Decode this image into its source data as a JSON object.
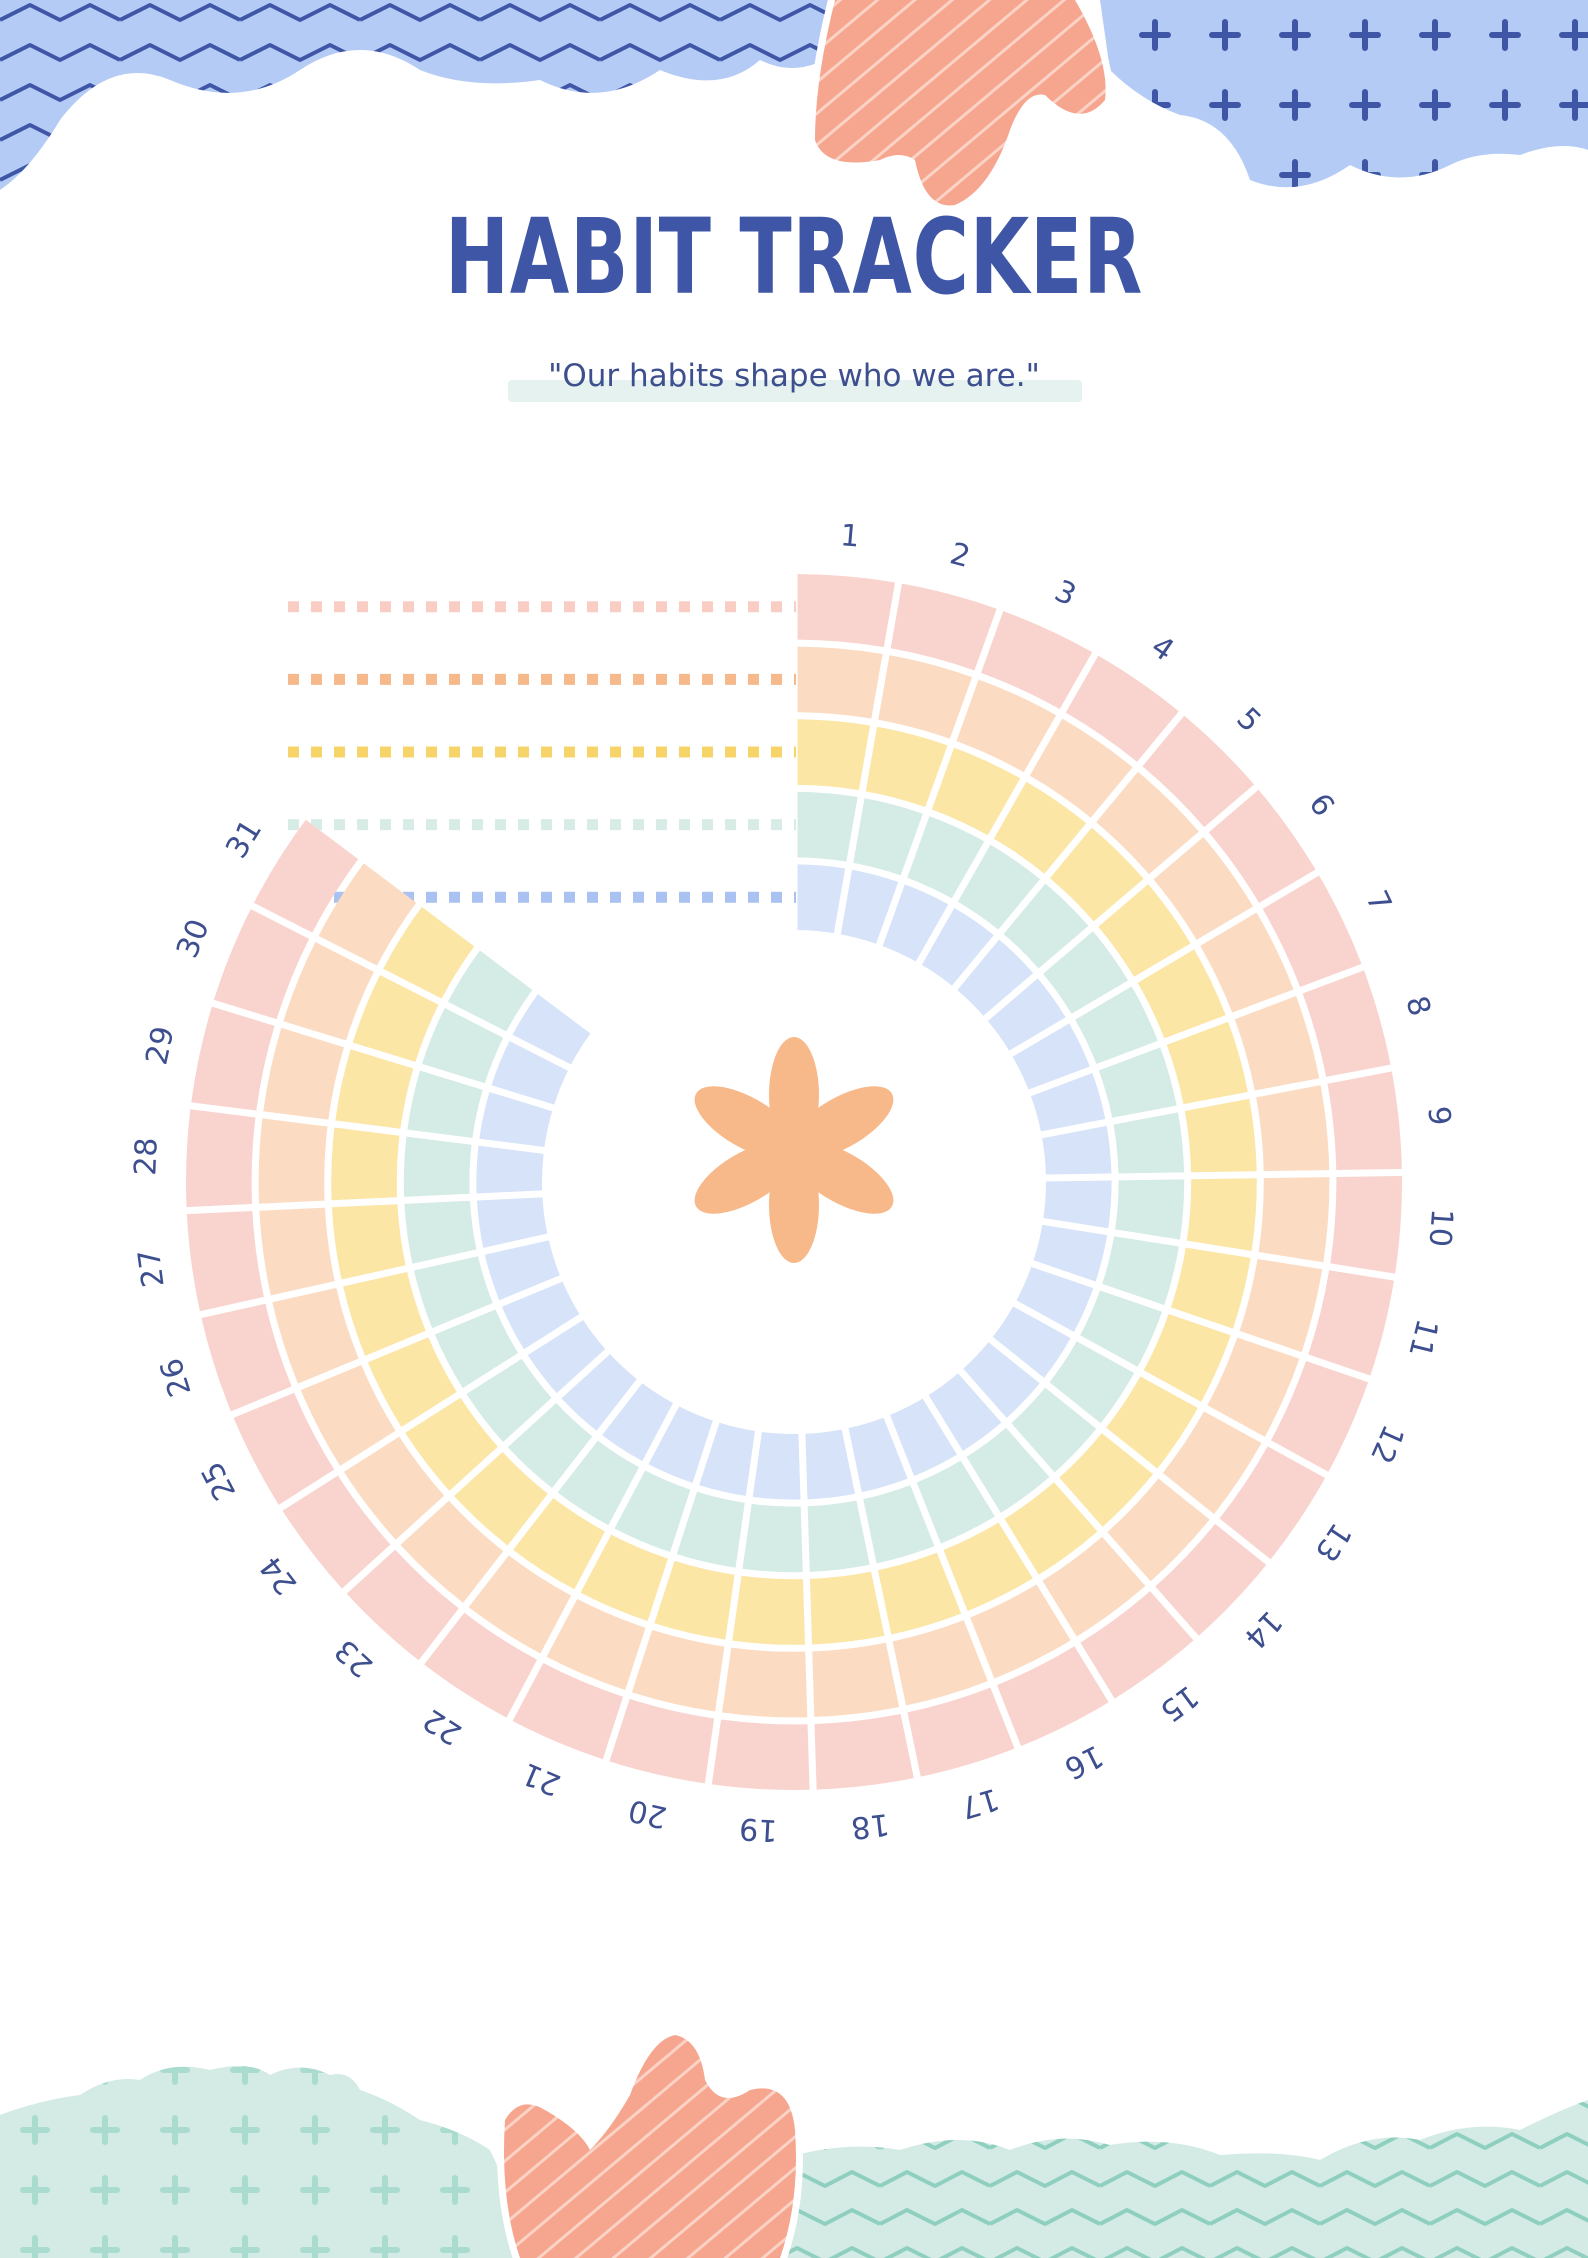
{
  "header": {
    "title": "HABIT TRACKER",
    "quote": "\"Our habits shape who we are.\""
  },
  "tracker": {
    "day_labels": [
      "1",
      "2",
      "3",
      "4",
      "5",
      "6",
      "7",
      "8",
      "9",
      "10",
      "11",
      "12",
      "13",
      "14",
      "15",
      "16",
      "17",
      "18",
      "19",
      "20",
      "21",
      "22",
      "23",
      "24",
      "25",
      "26",
      "27",
      "28",
      "29",
      "30",
      "31"
    ],
    "habit_rows": 5,
    "ring_colors": [
      "#f9d4ce",
      "#fbdcc3",
      "#fbe6a6",
      "#d4ebe6",
      "#d6e3f9"
    ],
    "line_colors": [
      "#f9cdc4",
      "#f6b98b",
      "#f6d46a",
      "#d8ece7",
      "#a9c2f2"
    ]
  },
  "center_icon": "asterisk-flower-icon",
  "colors": {
    "title": "#3f56a6",
    "number": "#3d4f8e",
    "quote_bar": "#e6f2ef",
    "flower": "#f8b98a",
    "top_blue_pattern": "#b4cbf6",
    "top_blue_stroke": "#3f56a6",
    "coral": "#f6a58e",
    "bottom_mint": "#d3ebe4",
    "bottom_mint_stroke": "#9fd3c6"
  }
}
